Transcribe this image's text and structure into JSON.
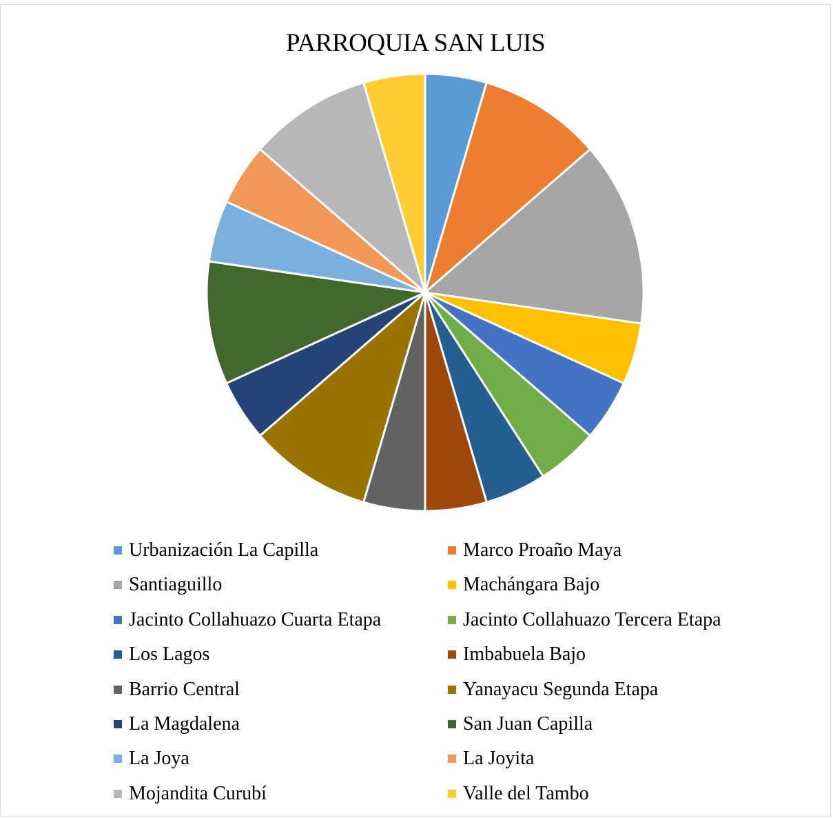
{
  "chart_data": {
    "type": "pie",
    "title": "PARROQUIA SAN LUIS",
    "legend_position": "bottom",
    "slices": [
      {
        "name": "Urbanización La Capilla",
        "value": 1,
        "color": "#5B9BD5"
      },
      {
        "name": "Marco Proaño Maya",
        "value": 2,
        "color": "#ED7D31"
      },
      {
        "name": "Santiaguillo",
        "value": 3,
        "color": "#A5A5A5"
      },
      {
        "name": "Machángara Bajo",
        "value": 1,
        "color": "#FFC000"
      },
      {
        "name": "Jacinto Collahuazo Cuarta Etapa",
        "value": 1,
        "color": "#4472C4"
      },
      {
        "name": "Jacinto Collahuazo Tercera Etapa",
        "value": 1,
        "color": "#70AD47"
      },
      {
        "name": "Los Lagos",
        "value": 1,
        "color": "#255E91"
      },
      {
        "name": "Imbabuela Bajo",
        "value": 1,
        "color": "#9E480E"
      },
      {
        "name": "Barrio Central",
        "value": 1,
        "color": "#636363"
      },
      {
        "name": "Yanayacu Segunda Etapa",
        "value": 2,
        "color": "#997300"
      },
      {
        "name": "La Magdalena",
        "value": 1,
        "color": "#264478"
      },
      {
        "name": "San Juan Capilla",
        "value": 2,
        "color": "#43682B"
      },
      {
        "name": "La Joya",
        "value": 1,
        "color": "#7CAFDD"
      },
      {
        "name": "La Joyita",
        "value": 1,
        "color": "#F1975A"
      },
      {
        "name": "Mojandita Curubí",
        "value": 2,
        "color": "#B7B7B7"
      },
      {
        "name": "Valle del Tambo",
        "value": 1,
        "color": "#FFCD33"
      }
    ]
  }
}
